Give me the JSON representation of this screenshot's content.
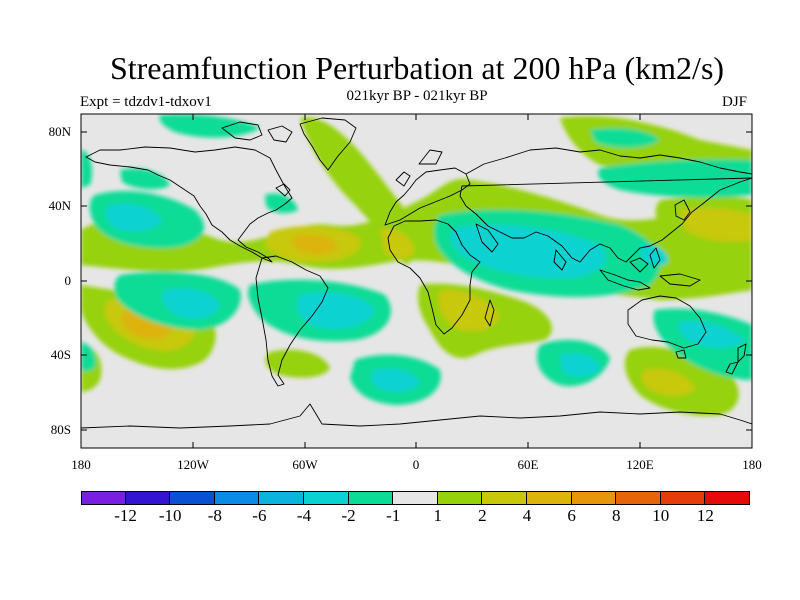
{
  "title": "Streamfunction Perturbation at 200 hPa (km2/s)",
  "subtitle": "021kyr BP - 021kyr BP",
  "experiment_label": "Expt = tdzdv1-tdxov1",
  "season": "DJF",
  "y_axis_labels": [
    "80N",
    "40N",
    "0",
    "40S",
    "80S"
  ],
  "x_axis_labels": [
    "180",
    "120W",
    "60W",
    "0",
    "60E",
    "120E",
    "180"
  ],
  "colorbar": {
    "colors": [
      "#7a1fe0",
      "#3214d2",
      "#0a50d2",
      "#0a8ce6",
      "#0ab4dc",
      "#0ad2d2",
      "#0adc96",
      "#e6e6e6",
      "#96d20a",
      "#c8c80a",
      "#dcb40a",
      "#e6960a",
      "#e6640a",
      "#e63c0a",
      "#e60a0a"
    ],
    "labels": [
      "-12",
      "-10",
      "-8",
      "-6",
      "-4",
      "-2",
      "-1",
      "1",
      "2",
      "4",
      "6",
      "8",
      "10",
      "12"
    ]
  },
  "colors": {
    "background": "#e6e6e6",
    "coastline": "#000000"
  }
}
